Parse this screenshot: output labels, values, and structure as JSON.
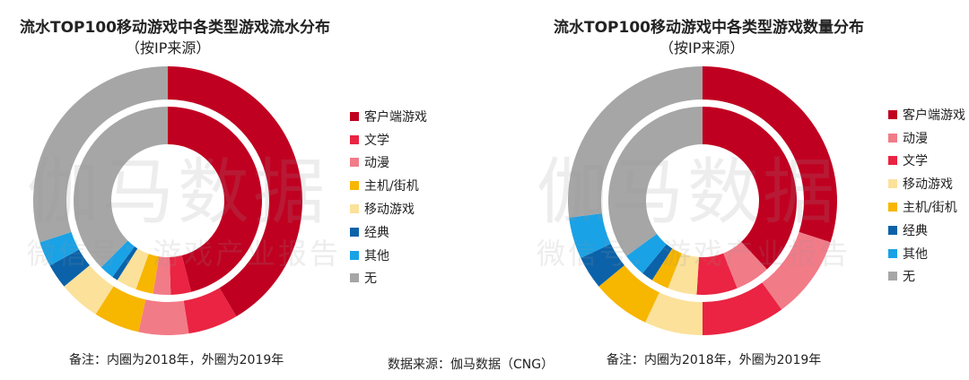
{
  "chart_data": [
    {
      "type": "pie",
      "title": "流水TOP100移动游戏中各类型游戏流水分布",
      "subtitle": "（按IP来源）",
      "legend": [
        "客户端游戏",
        "文学",
        "动漫",
        "主机/街机",
        "移动游戏",
        "经典",
        "其他",
        "无"
      ],
      "legend_position": "right",
      "series": [
        {
          "name": "2019年",
          "ring": "outer",
          "values": [
            41.5,
            6.0,
            6.0,
            5.5,
            5.0,
            3.0,
            3.0,
            30.0
          ]
        },
        {
          "name": "2018年",
          "ring": "inner",
          "values": [
            46.0,
            3.5,
            3.0,
            3.0,
            3.5,
            1.0,
            2.5,
            37.5
          ]
        }
      ],
      "note": "备注：内圈为2018年，外圈为2019年"
    },
    {
      "type": "pie",
      "title": "流水TOP100移动游戏中各类型游戏数量分布",
      "subtitle": "（按IP来源）",
      "legend": [
        "客户端游戏",
        "动漫",
        "文学",
        "移动游戏",
        "主机/街机",
        "经典",
        "其他",
        "无"
      ],
      "legend_position": "right",
      "series": [
        {
          "name": "2019年",
          "ring": "outer",
          "values": [
            30.0,
            10.0,
            10.0,
            7.0,
            7.0,
            4.0,
            5.0,
            27.0
          ]
        },
        {
          "name": "2018年",
          "ring": "inner",
          "values": [
            38.0,
            6.0,
            7.0,
            5.0,
            3.0,
            2.0,
            4.0,
            35.0
          ]
        }
      ],
      "note": "备注：内圈为2018年，外圈为2019年"
    }
  ],
  "category_colors": {
    "客户端游戏": "#c00021",
    "文学": "#ea2442",
    "动漫": "#f27b88",
    "主机/街机": "#f7b600",
    "移动游戏": "#fbe19a",
    "经典": "#0b62a9",
    "其他": "#1aa2e6",
    "无": "#a6a6a6"
  },
  "source": "数据来源：伽马数据（CNG）",
  "watermark": {
    "main": "伽马数据",
    "sub": "微信号：游戏产业报告"
  }
}
